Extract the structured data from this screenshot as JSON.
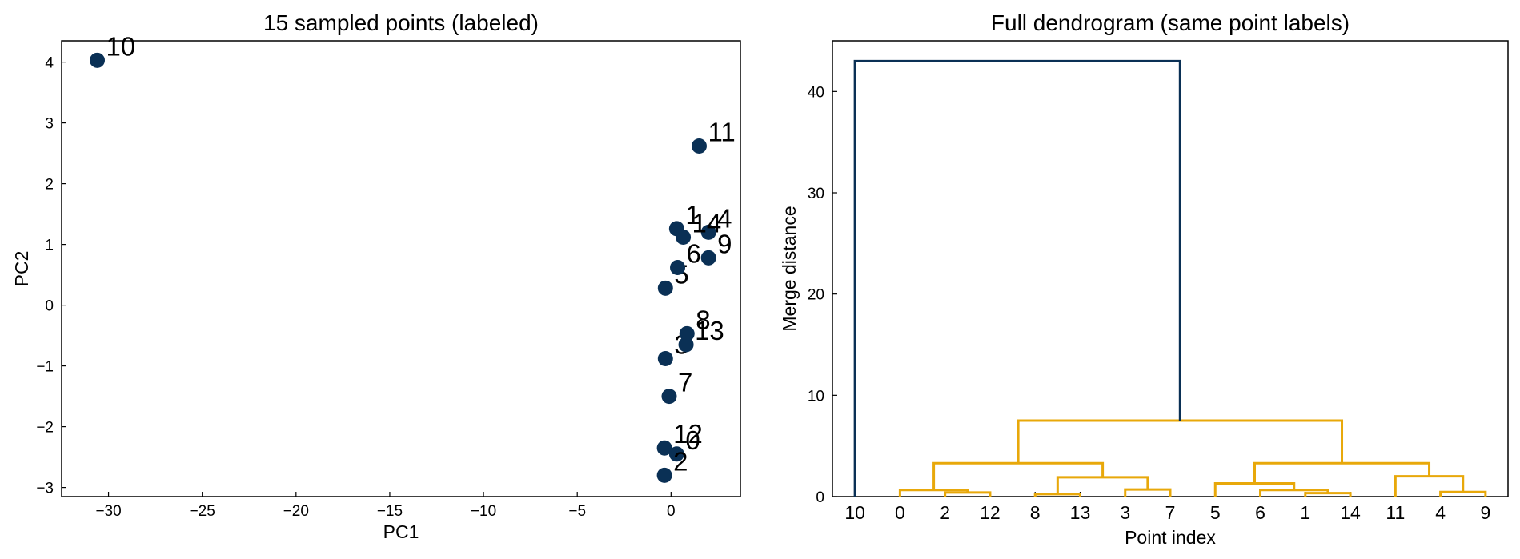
{
  "chart_data": [
    {
      "type": "scatter",
      "title": "15 sampled points (labeled)",
      "xlabel": "PC1",
      "ylabel": "PC2",
      "xlim": [
        -32.5,
        3.7
      ],
      "ylim": [
        -3.15,
        4.35
      ],
      "xticks": [
        -30,
        -25,
        -20,
        -15,
        -10,
        -5,
        0
      ],
      "yticks": [
        -3,
        -2,
        -1,
        0,
        1,
        2,
        3,
        4
      ],
      "grid": false,
      "marker_color": "#0a3055",
      "points": [
        {
          "label": "0",
          "x": 0.3,
          "y": -2.45
        },
        {
          "label": "1",
          "x": 0.3,
          "y": 1.26
        },
        {
          "label": "2",
          "x": -0.35,
          "y": -2.8
        },
        {
          "label": "3",
          "x": -0.3,
          "y": -0.88
        },
        {
          "label": "4",
          "x": 2.0,
          "y": 1.2
        },
        {
          "label": "5",
          "x": -0.3,
          "y": 0.28
        },
        {
          "label": "6",
          "x": 0.35,
          "y": 0.62
        },
        {
          "label": "7",
          "x": -0.1,
          "y": -1.5
        },
        {
          "label": "8",
          "x": 0.85,
          "y": -0.47
        },
        {
          "label": "9",
          "x": 2.0,
          "y": 0.78
        },
        {
          "label": "10",
          "x": -30.6,
          "y": 4.03
        },
        {
          "label": "11",
          "x": 1.5,
          "y": 2.62
        },
        {
          "label": "12",
          "x": -0.35,
          "y": -2.35
        },
        {
          "label": "13",
          "x": 0.8,
          "y": -0.65
        },
        {
          "label": "14",
          "x": 0.65,
          "y": 1.12
        }
      ]
    },
    {
      "type": "dendrogram",
      "title": "Full dendrogram (same point labels)",
      "xlabel": "Point index",
      "ylabel": "Merge distance",
      "ylim": [
        0,
        45
      ],
      "yticks": [
        0,
        10,
        20,
        30,
        40
      ],
      "leaf_order": [
        "10",
        "0",
        "2",
        "12",
        "8",
        "13",
        "3",
        "7",
        "5",
        "6",
        "1",
        "14",
        "11",
        "4",
        "9"
      ],
      "colors": {
        "root": "#0a3055",
        "cluster": "#e8a80a"
      },
      "merges": [
        {
          "left": 2,
          "right": 3,
          "height": 0.4,
          "color": "cluster"
        },
        {
          "left": 1,
          "right": 15,
          "height": 0.65,
          "color": "cluster"
        },
        {
          "left": 4,
          "right": 5,
          "height": 0.25,
          "color": "cluster"
        },
        {
          "left": 6,
          "right": 7,
          "height": 0.7,
          "color": "cluster"
        },
        {
          "left": 17,
          "right": 18,
          "height": 1.9,
          "color": "cluster"
        },
        {
          "left": 16,
          "right": 19,
          "height": 3.3,
          "color": "cluster"
        },
        {
          "left": 10,
          "right": 11,
          "height": 0.35,
          "color": "cluster"
        },
        {
          "left": 9,
          "right": 21,
          "height": 0.65,
          "color": "cluster"
        },
        {
          "left": 8,
          "right": 22,
          "height": 1.3,
          "color": "cluster"
        },
        {
          "left": 13,
          "right": 14,
          "height": 0.45,
          "color": "cluster"
        },
        {
          "left": 12,
          "right": 24,
          "height": 2.0,
          "color": "cluster"
        },
        {
          "left": 23,
          "right": 25,
          "height": 3.3,
          "color": "cluster"
        },
        {
          "left": 20,
          "right": 26,
          "height": 7.5,
          "color": "cluster"
        },
        {
          "left": 0,
          "right": 27,
          "height": 43.0,
          "color": "root"
        }
      ]
    }
  ]
}
